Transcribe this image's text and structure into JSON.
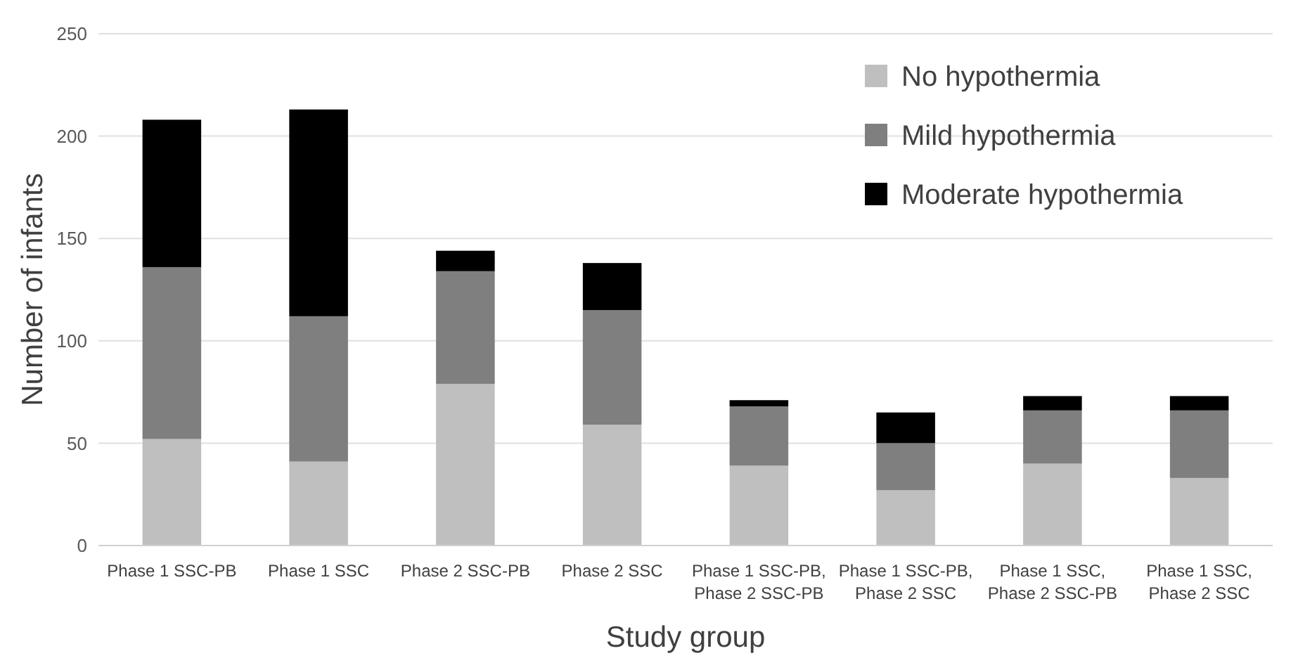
{
  "chart_data": {
    "type": "bar",
    "stacked": true,
    "xlabel": "Study group",
    "ylabel": "Number of infants",
    "categories": [
      "Phase 1 SSC-PB",
      "Phase 1 SSC",
      "Phase 2 SSC-PB",
      "Phase 2 SSC",
      "Phase 1 SSC-PB, Phase 2 SSC-PB",
      "Phase 1 SSC-PB, Phase 2 SSC",
      "Phase 1 SSC, Phase 2 SSC-PB",
      "Phase 1 SSC, Phase 2 SSC"
    ],
    "series": [
      {
        "name": "No hypothermia",
        "color": "#bfbfbf",
        "values": [
          52,
          41,
          79,
          59,
          39,
          27,
          40,
          33
        ]
      },
      {
        "name": "Mild hypothermia",
        "color": "#7f7f7f",
        "values": [
          84,
          71,
          55,
          56,
          29,
          23,
          26,
          33
        ]
      },
      {
        "name": "Moderate hypothermia",
        "color": "#000000",
        "values": [
          72,
          101,
          10,
          23,
          3,
          15,
          7,
          7
        ]
      }
    ],
    "ylim": [
      0,
      250
    ],
    "yticks": [
      0,
      50,
      100,
      150,
      200,
      250
    ],
    "grid": "y",
    "legend": "top right"
  }
}
